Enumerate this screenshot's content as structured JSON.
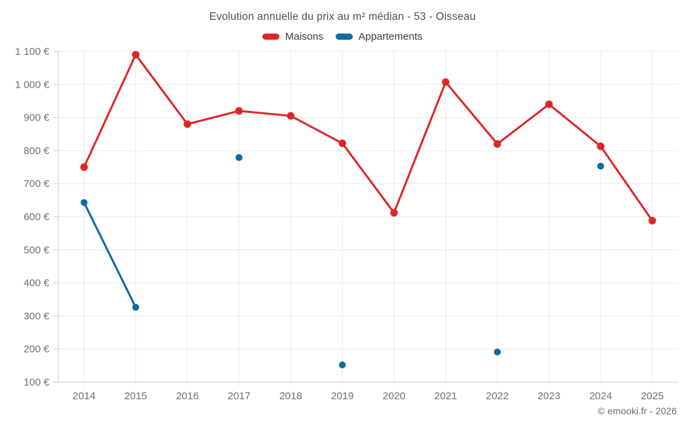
{
  "title": "Evolution annuelle du prix au m² médian - 53 - Oisseau",
  "legend": [
    {
      "label": "Maisons",
      "color": "#dd2727"
    },
    {
      "label": "Appartements",
      "color": "#0f6aa5"
    }
  ],
  "footer": "© emooki.fr - 2026",
  "colors": {
    "grid": "#e9e9e9",
    "axis": "#c9c9c9",
    "tick_text": "#707070"
  },
  "chart_data": {
    "type": "line",
    "title": "Evolution annuelle du prix au m² médian - 53 - Oisseau",
    "categories": [
      "2014",
      "2015",
      "2016",
      "2017",
      "2018",
      "2019",
      "2020",
      "2021",
      "2022",
      "2023",
      "2024",
      "2025"
    ],
    "series": [
      {
        "name": "Maisons",
        "color": "#dd2727",
        "marker_radius": 5.5,
        "line_width": 3,
        "values": [
          750,
          1090,
          880,
          920,
          905,
          822,
          612,
          1007,
          820,
          940,
          813,
          588
        ]
      },
      {
        "name": "Appartements",
        "color": "#0f6aa5",
        "marker_radius": 5,
        "line_width": 3,
        "values": [
          643,
          326,
          null,
          779,
          null,
          152,
          null,
          null,
          191,
          null,
          753,
          null
        ]
      }
    ],
    "xlabel": "",
    "ylabel": "",
    "ylim": [
      100,
      1100
    ],
    "ytick_step": 100,
    "ytick_suffix": " €",
    "grid": true,
    "legend_position": "top"
  }
}
